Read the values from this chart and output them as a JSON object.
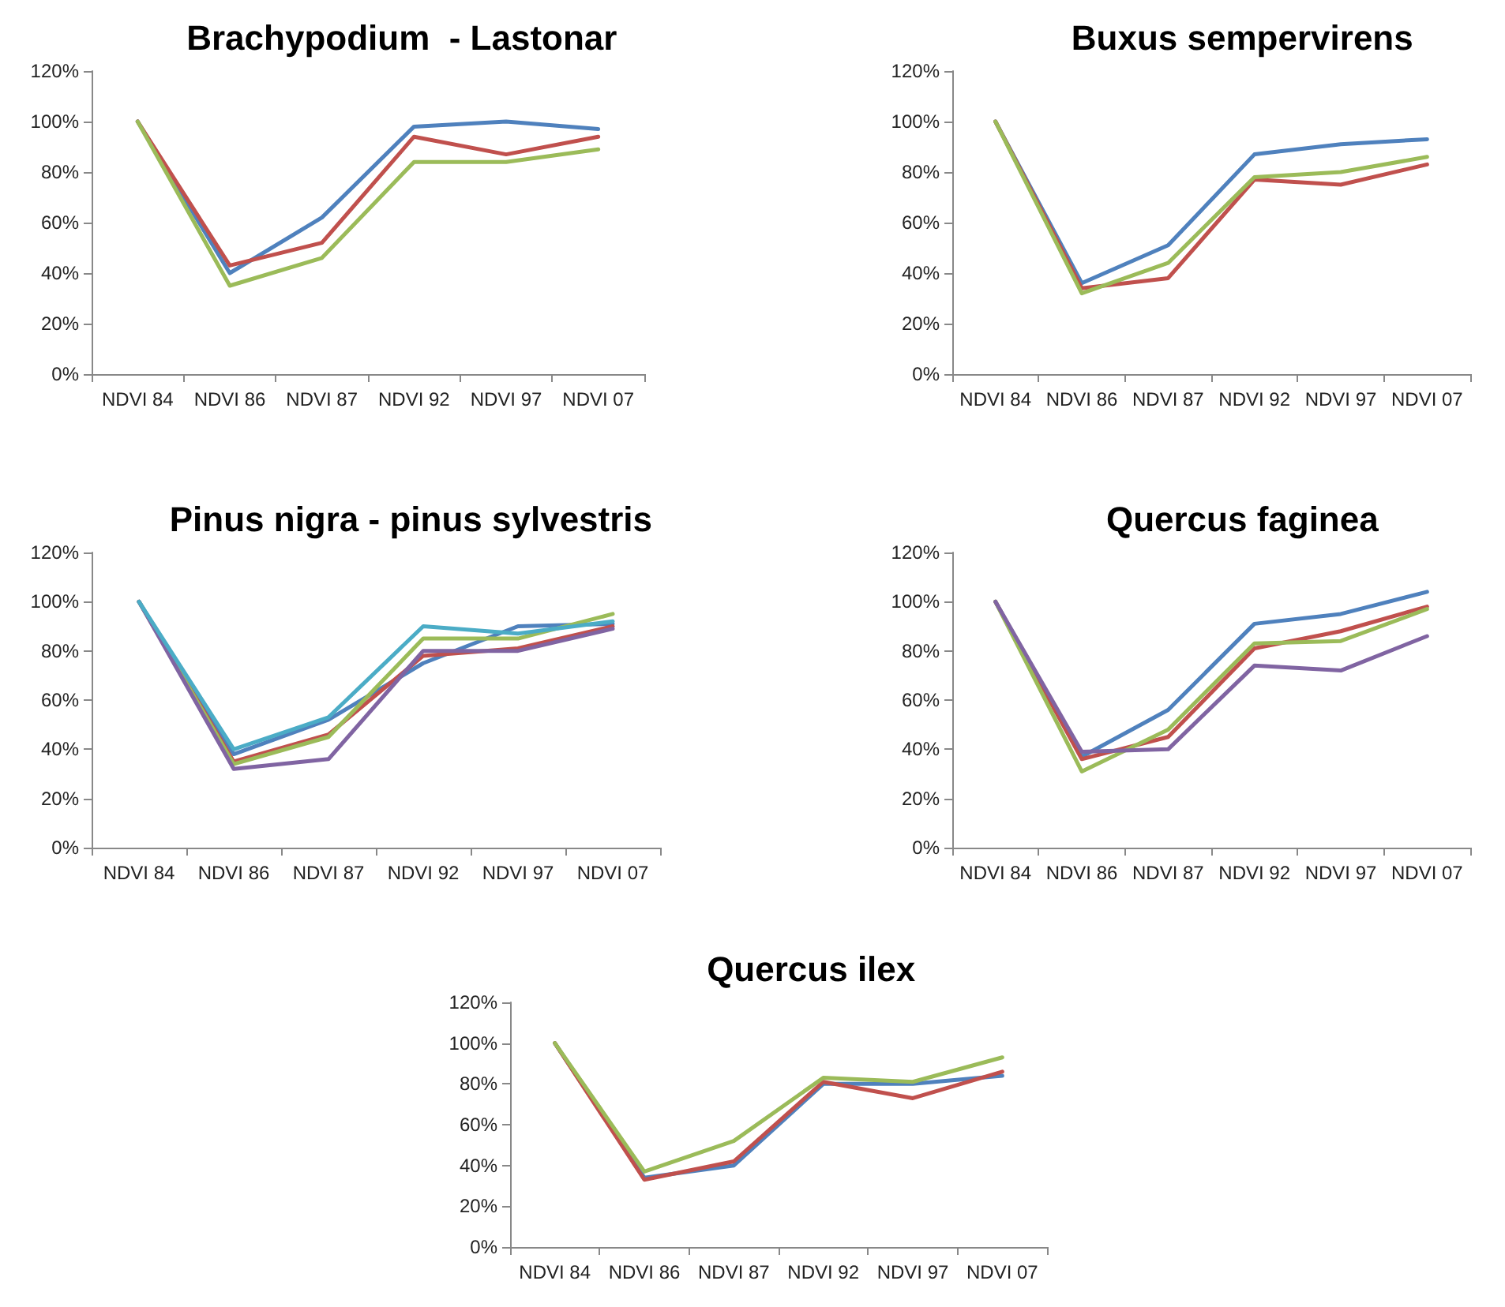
{
  "chart_data": [
    {
      "type": "line",
      "title": "Brachypodium  - Lastonar",
      "categories": [
        "NDVI 84",
        "NDVI 86",
        "NDVI 87",
        "NDVI 92",
        "NDVI 97",
        "NDVI 07"
      ],
      "ylim": [
        0,
        120
      ],
      "yticks": [
        {
          "value": 0,
          "label": "0%"
        },
        {
          "value": 20,
          "label": "20%"
        },
        {
          "value": 40,
          "label": "40%"
        },
        {
          "value": 60,
          "label": "60%"
        },
        {
          "value": 80,
          "label": "80%"
        },
        {
          "value": 100,
          "label": "100%"
        },
        {
          "value": 120,
          "label": "120%"
        }
      ],
      "marker": "none",
      "series": [
        {
          "color": "#4f81bd",
          "values": [
            100,
            40,
            62,
            98,
            100,
            97
          ]
        },
        {
          "color": "#c0504d",
          "values": [
            100,
            43,
            52,
            94,
            87,
            94
          ]
        },
        {
          "color": "#9bbb59",
          "values": [
            100,
            35,
            46,
            84,
            84,
            89
          ]
        }
      ]
    },
    {
      "type": "line",
      "title": "Buxus sempervirens",
      "categories": [
        "NDVI 84",
        "NDVI 86",
        "NDVI 87",
        "NDVI 92",
        "NDVI 97",
        "NDVI 07"
      ],
      "ylim": [
        0,
        120
      ],
      "yticks": [
        {
          "value": 0,
          "label": "0%"
        },
        {
          "value": 20,
          "label": "20%"
        },
        {
          "value": 40,
          "label": "40%"
        },
        {
          "value": 60,
          "label": "60%"
        },
        {
          "value": 80,
          "label": "80%"
        },
        {
          "value": 100,
          "label": "100%"
        },
        {
          "value": 120,
          "label": "120%"
        }
      ],
      "marker": "none",
      "series": [
        {
          "color": "#4f81bd",
          "values": [
            100,
            36,
            51,
            87,
            91,
            93
          ]
        },
        {
          "color": "#c0504d",
          "values": [
            100,
            34,
            38,
            77,
            75,
            83
          ]
        },
        {
          "color": "#9bbb59",
          "values": [
            100,
            32,
            44,
            78,
            80,
            86
          ]
        }
      ]
    },
    {
      "type": "line",
      "title": "Pinus nigra - pinus sylvestris",
      "categories": [
        "NDVI 84",
        "NDVI 86",
        "NDVI 87",
        "NDVI 92",
        "NDVI 97",
        "NDVI 07"
      ],
      "ylim": [
        0,
        120
      ],
      "yticks": [
        {
          "value": 0,
          "label": "0%"
        },
        {
          "value": 20,
          "label": "20%"
        },
        {
          "value": 40,
          "label": "40%"
        },
        {
          "value": 60,
          "label": "60%"
        },
        {
          "value": 80,
          "label": "80%"
        },
        {
          "value": 100,
          "label": "100%"
        },
        {
          "value": 120,
          "label": "120%"
        }
      ],
      "marker": "none",
      "series": [
        {
          "color": "#4f81bd",
          "values": [
            100,
            38,
            52,
            75,
            90,
            91
          ]
        },
        {
          "color": "#c0504d",
          "values": [
            100,
            35,
            46,
            78,
            81,
            90
          ]
        },
        {
          "color": "#9bbb59",
          "values": [
            100,
            34,
            45,
            85,
            85,
            95
          ]
        },
        {
          "color": "#8064a2",
          "values": [
            100,
            32,
            36,
            80,
            80,
            89
          ]
        },
        {
          "color": "#4bacc6",
          "values": [
            100,
            40,
            53,
            90,
            87,
            92
          ]
        }
      ]
    },
    {
      "type": "line",
      "title": "Quercus faginea",
      "categories": [
        "NDVI 84",
        "NDVI 86",
        "NDVI 87",
        "NDVI 92",
        "NDVI 97",
        "NDVI 07"
      ],
      "ylim": [
        0,
        120
      ],
      "yticks": [
        {
          "value": 0,
          "label": "0%"
        },
        {
          "value": 20,
          "label": "20%"
        },
        {
          "value": 40,
          "label": "40%"
        },
        {
          "value": 60,
          "label": "60%"
        },
        {
          "value": 80,
          "label": "80%"
        },
        {
          "value": 100,
          "label": "100%"
        },
        {
          "value": 120,
          "label": "120%"
        }
      ],
      "marker": "none",
      "series": [
        {
          "color": "#4f81bd",
          "values": [
            100,
            37,
            56,
            91,
            95,
            104
          ]
        },
        {
          "color": "#c0504d",
          "values": [
            100,
            36,
            45,
            81,
            88,
            98
          ]
        },
        {
          "color": "#9bbb59",
          "values": [
            100,
            31,
            48,
            83,
            84,
            97
          ]
        },
        {
          "color": "#8064a2",
          "values": [
            100,
            39,
            40,
            74,
            72,
            86
          ]
        }
      ]
    },
    {
      "type": "line",
      "title": "Quercus ilex",
      "categories": [
        "NDVI 84",
        "NDVI 86",
        "NDVI 87",
        "NDVI 92",
        "NDVI 97",
        "NDVI 07"
      ],
      "ylim": [
        0,
        120
      ],
      "yticks": [
        {
          "value": 0,
          "label": "0%"
        },
        {
          "value": 20,
          "label": "20%"
        },
        {
          "value": 40,
          "label": "40%"
        },
        {
          "value": 60,
          "label": "60%"
        },
        {
          "value": 80,
          "label": "80%"
        },
        {
          "value": 100,
          "label": "100%"
        },
        {
          "value": 120,
          "label": "120%"
        }
      ],
      "marker": "none",
      "series": [
        {
          "color": "#4f81bd",
          "values": [
            100,
            34,
            40,
            80,
            80,
            84
          ]
        },
        {
          "color": "#c0504d",
          "values": [
            100,
            33,
            42,
            81,
            73,
            86
          ]
        },
        {
          "color": "#9bbb59",
          "values": [
            100,
            37,
            52,
            83,
            81,
            93
          ]
        }
      ]
    }
  ]
}
